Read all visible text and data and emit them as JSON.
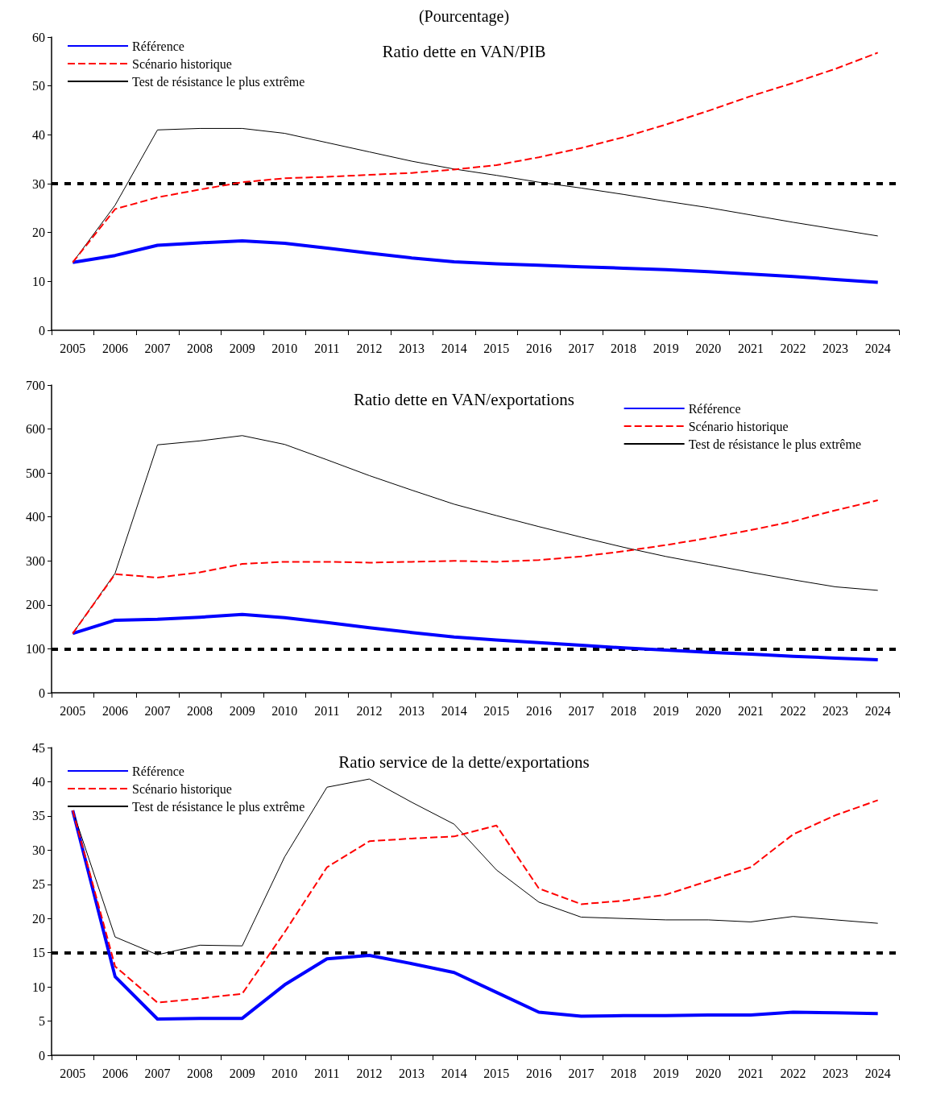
{
  "chart_data": [
    {
      "type": "line",
      "title": "Ratio dette en VAN/PIB",
      "annotations": [
        "(Pourcentage)"
      ],
      "categories": [
        "2005",
        "2006",
        "2007",
        "2008",
        "2009",
        "2010",
        "2011",
        "2012",
        "2013",
        "2014",
        "2015",
        "2016",
        "2017",
        "2018",
        "2019",
        "2020",
        "2021",
        "2022",
        "2023",
        "2024"
      ],
      "ylim": [
        0,
        60
      ],
      "yticks": [
        0,
        10,
        20,
        30,
        40,
        50,
        60
      ],
      "grid": false,
      "legend": "top left",
      "marker": "none",
      "ref_lines": [
        {
          "axis": "y",
          "value": 30,
          "color": "#000000",
          "line_style": "dotted"
        }
      ],
      "series": [
        {
          "name": "Référence",
          "color": "#0000ff",
          "line_style": "solid",
          "values": [
            13.9,
            15.3,
            17.4,
            17.9,
            18.3,
            17.8,
            16.8,
            15.8,
            14.8,
            14.0,
            13.6,
            13.3,
            13.0,
            12.7,
            12.4,
            12.0,
            11.5,
            11.0,
            10.4,
            9.8
          ]
        },
        {
          "name": "Scénario historique",
          "color": "#ff0000",
          "line_style": "dashed",
          "values": [
            13.9,
            24.8,
            27.2,
            28.8,
            30.3,
            31.1,
            31.4,
            31.8,
            32.2,
            32.9,
            33.8,
            35.4,
            37.3,
            39.5,
            42.1,
            44.9,
            47.9,
            50.6,
            53.5,
            56.8
          ]
        },
        {
          "name": "Test de résistance le plus extrême",
          "color": "#000000",
          "line_style": "solid",
          "values": [
            13.9,
            25.6,
            41.0,
            41.3,
            41.3,
            40.3,
            38.4,
            36.5,
            34.6,
            33.0,
            31.7,
            30.3,
            29.1,
            27.8,
            26.4,
            25.1,
            23.6,
            22.1,
            20.7,
            19.3
          ]
        }
      ]
    },
    {
      "type": "line",
      "title": "Ratio dette en VAN/exportations",
      "categories": [
        "2005",
        "2006",
        "2007",
        "2008",
        "2009",
        "2010",
        "2011",
        "2012",
        "2013",
        "2014",
        "2015",
        "2016",
        "2017",
        "2018",
        "2019",
        "2020",
        "2021",
        "2022",
        "2023",
        "2024"
      ],
      "ylim": [
        0,
        700
      ],
      "yticks": [
        0,
        100,
        200,
        300,
        400,
        500,
        600,
        700
      ],
      "grid": false,
      "legend": "top right",
      "marker": "none",
      "ref_lines": [
        {
          "axis": "y",
          "value": 100,
          "color": "#000000",
          "line_style": "dotted"
        }
      ],
      "series": [
        {
          "name": "Référence",
          "color": "#0000ff",
          "line_style": "solid",
          "values": [
            135,
            165,
            167,
            172,
            178,
            171,
            160,
            148,
            137,
            127,
            120,
            114,
            108,
            102,
            97,
            92,
            88,
            83,
            79,
            75
          ]
        },
        {
          "name": "Scénario historique",
          "color": "#ff0000",
          "line_style": "dashed",
          "values": [
            135,
            270,
            262,
            274,
            293,
            298,
            298,
            296,
            298,
            300,
            298,
            302,
            310,
            322,
            336,
            352,
            370,
            390,
            415,
            438
          ]
        },
        {
          "name": "Test de résistance le plus extrême",
          "color": "#000000",
          "line_style": "solid",
          "values": [
            135,
            272,
            564,
            573,
            585,
            565,
            530,
            494,
            461,
            429,
            403,
            378,
            354,
            331,
            310,
            292,
            274,
            257,
            241,
            233
          ]
        }
      ]
    },
    {
      "type": "line",
      "title": "Ratio service de la dette/exportations",
      "categories": [
        "2005",
        "2006",
        "2007",
        "2008",
        "2009",
        "2010",
        "2011",
        "2012",
        "2013",
        "2014",
        "2015",
        "2016",
        "2017",
        "2018",
        "2019",
        "2020",
        "2021",
        "2022",
        "2023",
        "2024"
      ],
      "ylim": [
        0,
        45
      ],
      "yticks": [
        0,
        5,
        10,
        15,
        20,
        25,
        30,
        35,
        40,
        45
      ],
      "grid": false,
      "legend": "top left",
      "marker": "none",
      "ref_lines": [
        {
          "axis": "y",
          "value": 15,
          "color": "#000000",
          "line_style": "dotted"
        }
      ],
      "series": [
        {
          "name": "Référence",
          "color": "#0000ff",
          "line_style": "solid",
          "values": [
            35.8,
            11.5,
            5.3,
            5.4,
            5.4,
            10.3,
            14.1,
            14.6,
            13.4,
            12.1,
            9.2,
            6.3,
            5.7,
            5.8,
            5.8,
            5.9,
            5.9,
            6.3,
            6.2,
            6.1
          ]
        },
        {
          "name": "Scénario historique",
          "color": "#ff0000",
          "line_style": "dashed",
          "values": [
            35.8,
            13.0,
            7.7,
            8.3,
            9.0,
            18.0,
            27.5,
            31.3,
            31.7,
            32.0,
            33.6,
            24.4,
            22.1,
            22.6,
            23.5,
            25.5,
            27.5,
            32.3,
            35.1,
            37.3
          ]
        },
        {
          "name": "Test de résistance le plus extrême",
          "color": "#000000",
          "line_style": "solid",
          "values": [
            35.8,
            17.3,
            14.7,
            16.1,
            16.0,
            29.0,
            39.2,
            40.4,
            37.0,
            33.8,
            27.1,
            22.4,
            20.2,
            20.0,
            19.8,
            19.8,
            19.5,
            20.3,
            19.8,
            19.3
          ]
        }
      ]
    }
  ]
}
